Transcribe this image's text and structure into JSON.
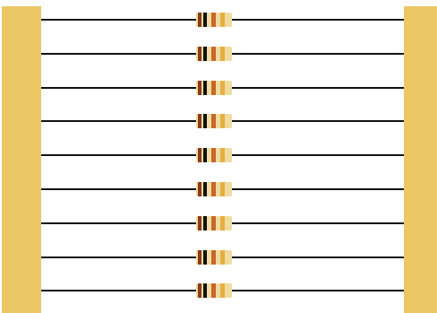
{
  "diagram": {
    "type": "parallel-resistors",
    "resistor_count": 9,
    "colors": {
      "background": "#ffffff",
      "terminal_bar": "#ecc765",
      "wire": "#111111",
      "resistor_body": "#f0dca0",
      "band_1": "#8b3a1a",
      "band_2": "#111111",
      "band_3": "#c8662a",
      "band_4": "#e3b044"
    }
  }
}
